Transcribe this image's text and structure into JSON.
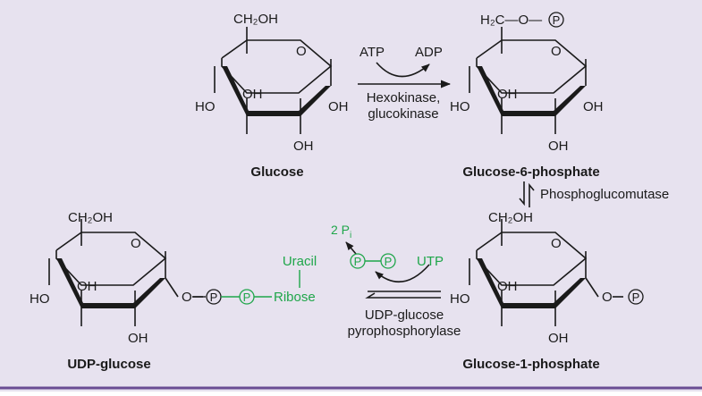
{
  "colors": {
    "panel_bg": "#e7e2ef",
    "rule": "#6a4c93",
    "ink": "#1a1a1a",
    "accent_green": "#1fa64a"
  },
  "glucose": {
    "ch2oh": "CH₂OH",
    "ring_o": "O",
    "oh_left": "HO",
    "oh_mid": "OH",
    "oh_right": "OH",
    "oh_bottom": "OH",
    "name": "Glucose"
  },
  "g6p": {
    "group": "H₂C—O—",
    "p": "P",
    "ring_o": "O",
    "oh_left": "HO",
    "oh_mid": "OH",
    "oh_right": "OH",
    "oh_bottom": "OH",
    "name": "Glucose-6-phosphate"
  },
  "g1p": {
    "ch2oh": "CH₂OH",
    "ring_o": "O",
    "oh_left": "HO",
    "oh_mid": "OH",
    "oh_bottom": "OH",
    "o_link": "O",
    "p": "P",
    "name": "Glucose-1-phosphate"
  },
  "udpg": {
    "ch2oh": "CH₂OH",
    "ring_o": "O",
    "oh_left": "HO",
    "oh_mid": "OH",
    "oh_bottom": "OH",
    "o_link": "O",
    "p1": "P",
    "p2": "P",
    "ribose": "Ribose",
    "uracil": "Uracil",
    "name": "UDP-glucose"
  },
  "reaction1": {
    "atp": "ATP",
    "adp": "ADP",
    "enzyme_line1": "Hexokinase,",
    "enzyme_line2": "glucokinase"
  },
  "reaction2": {
    "enzyme": "Phosphoglucomutase"
  },
  "reaction3": {
    "pi": "2 P",
    "pi_sub": "i",
    "pp1": "P",
    "pp2": "P",
    "utp": "UTP",
    "enzyme_line1": "UDP-glucose",
    "enzyme_line2": "pyrophosphorylase"
  }
}
